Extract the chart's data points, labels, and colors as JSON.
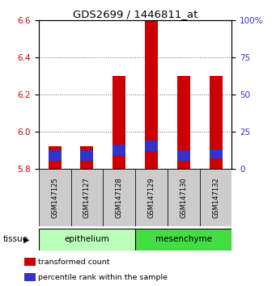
{
  "title": "GDS2699 / 1446811_at",
  "samples": [
    "GSM147125",
    "GSM147127",
    "GSM147128",
    "GSM147129",
    "GSM147130",
    "GSM147132"
  ],
  "red_values": [
    5.92,
    5.92,
    6.3,
    6.6,
    6.3,
    6.3
  ],
  "ylim_left": [
    5.8,
    6.6
  ],
  "ylim_right": [
    0,
    100
  ],
  "yticks_left": [
    5.8,
    6.0,
    6.2,
    6.4,
    6.6
  ],
  "yticks_right": [
    0,
    25,
    50,
    75,
    100
  ],
  "ytick_labels_right": [
    "0",
    "25",
    "50",
    "75",
    "100%"
  ],
  "bar_width": 0.4,
  "red_color": "#cc0000",
  "blue_color": "#3333cc",
  "base_value": 5.8,
  "blue_segment_heights": [
    0.055,
    0.055,
    0.055,
    0.055,
    0.055,
    0.05
  ],
  "blue_bottoms": [
    5.845,
    5.845,
    5.875,
    5.895,
    5.845,
    5.855
  ],
  "epi_color": "#bbffbb",
  "mes_color": "#44dd44",
  "gray_color": "#cccccc",
  "legend_items": [
    {
      "color": "#cc0000",
      "label": "transformed count"
    },
    {
      "color": "#3333cc",
      "label": "percentile rank within the sample"
    }
  ],
  "tissue_label": "tissue"
}
